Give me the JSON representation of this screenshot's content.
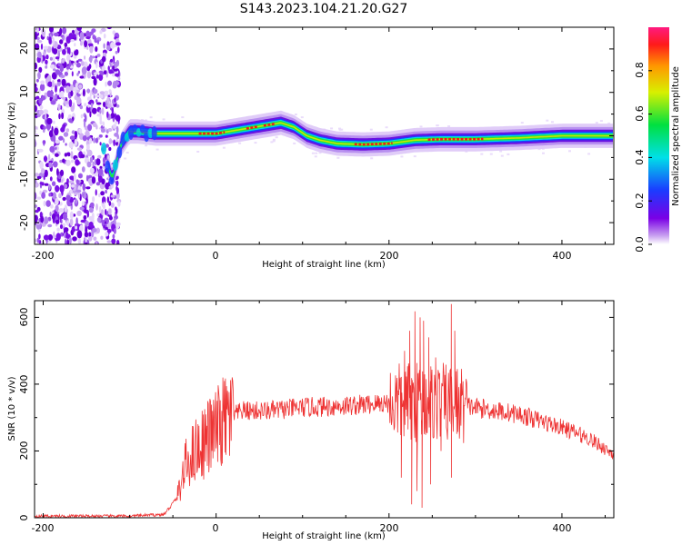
{
  "title": "S143.2023.104.21.20.G27",
  "colors": {
    "background": "#ffffff",
    "snr_line": "#ee3333",
    "axes": "#000000"
  },
  "chart_data": [
    {
      "type": "heatmap",
      "title": "S143.2023.104.21.20.G27",
      "xlabel": "Height of straight line (km)",
      "ylabel": "Frequency (Hz)",
      "xlim": [
        -210,
        460
      ],
      "ylim": [
        -25,
        25
      ],
      "xticks": [
        "-200",
        "0",
        "200",
        "400"
      ],
      "yticks": [
        "-20",
        "-10",
        "0",
        "10",
        "20"
      ],
      "colorbar": {
        "label": "Normalized spectral amplitude",
        "range": [
          0,
          1
        ],
        "ticks": [
          "0.0",
          "0.2",
          "0.4",
          "0.6",
          "0.8"
        ],
        "colormap": "rainbow (white, violet, blue, cyan, green, yellow, red, magenta)"
      },
      "ridge": {
        "x": [
          -130,
          -125,
          -120,
          -115,
          -110,
          -100,
          -90,
          -70,
          -40,
          0,
          30,
          60,
          75,
          90,
          105,
          120,
          140,
          170,
          200,
          230,
          260,
          300,
          350,
          400,
          460
        ],
        "frequency": [
          -3,
          -7,
          -10,
          -6,
          -2,
          1,
          1,
          0.5,
          0.5,
          0.5,
          1.5,
          2.5,
          3,
          2,
          0,
          -1,
          -1.8,
          -2,
          -1.8,
          -1,
          -0.8,
          -0.8,
          -0.5,
          0,
          0
        ],
        "peak_amplitude_segments": [
          [
            -20,
            10
          ],
          [
            35,
            50
          ],
          [
            55,
            70
          ],
          [
            160,
            205
          ],
          [
            245,
            310
          ]
        ]
      },
      "noise_region_x": [
        -210,
        -120
      ]
    },
    {
      "type": "line",
      "xlabel": "Height of straight line (km)",
      "ylabel": "SNR (10 * v/v)",
      "xlim": [
        -210,
        460
      ],
      "ylim": [
        0,
        650
      ],
      "xticks": [
        "-200",
        "0",
        "200",
        "400"
      ],
      "yticks": [
        "0",
        "200",
        "400",
        "600"
      ],
      "envelope": {
        "x": [
          -210,
          -100,
          -60,
          -45,
          -35,
          -25,
          -10,
          0,
          10,
          30,
          60,
          100,
          150,
          180,
          200,
          220,
          240,
          260,
          280,
          300,
          350,
          400,
          430,
          460
        ],
        "snr": [
          5,
          5,
          10,
          60,
          160,
          200,
          240,
          260,
          290,
          320,
          320,
          330,
          335,
          340,
          345,
          345,
          350,
          345,
          340,
          330,
          310,
          270,
          240,
          190
        ]
      },
      "spikes": [
        {
          "x": 212,
          "snr": 420
        },
        {
          "x": 218,
          "snr": 500
        },
        {
          "x": 224,
          "snr": 560
        },
        {
          "x": 230,
          "snr": 618
        },
        {
          "x": 236,
          "snr": 600
        },
        {
          "x": 240,
          "snr": 590
        },
        {
          "x": 246,
          "snr": 540
        },
        {
          "x": 254,
          "snr": 480
        },
        {
          "x": 272,
          "snr": 640
        },
        {
          "x": 276,
          "snr": 560
        }
      ],
      "dips": [
        {
          "x": 214,
          "snr": 120
        },
        {
          "x": 226,
          "snr": 40
        },
        {
          "x": 232,
          "snr": 80
        },
        {
          "x": 238,
          "snr": 30
        },
        {
          "x": 248,
          "snr": 100
        },
        {
          "x": 272,
          "snr": 120
        },
        {
          "x": 260,
          "snr": 200
        }
      ]
    }
  ]
}
